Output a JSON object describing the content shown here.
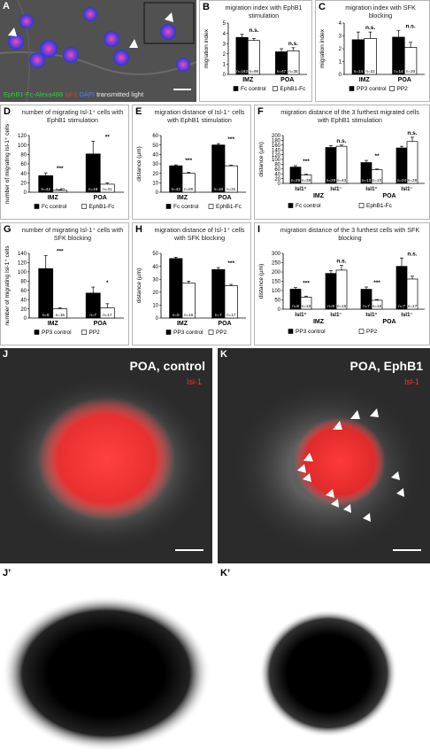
{
  "panel_labels": {
    "A": "A",
    "B": "B",
    "C": "C",
    "D": "D",
    "E": "E",
    "F": "F",
    "G": "G",
    "H": "H",
    "I": "I",
    "J": "J",
    "K": "K",
    "J2": "J’",
    "K2": "K’"
  },
  "microscopy": {
    "A_legend": [
      {
        "text": "EphB1-Fc-Alexa488",
        "color": "#2ecc40"
      },
      {
        "text": "Isl-1",
        "color": "#ff3030"
      },
      {
        "text": "DAPI",
        "color": "#4f7dff"
      },
      {
        "text": "transmitted light",
        "color": "#eeeeee"
      }
    ],
    "J_title": "POA, control",
    "J_legend": "Isl-1",
    "K_title": "POA, EphB1",
    "K_legend": "Isl-1"
  },
  "chart_data": [
    {
      "id": "B",
      "type": "bar",
      "title": "migration index with EphB1 stimulation",
      "ylabel": "migration index",
      "ylim": [
        0,
        5
      ],
      "yticks": [
        0,
        1,
        2,
        3,
        4,
        5
      ],
      "categories": [
        "IMZ",
        "POA"
      ],
      "series": [
        {
          "name": "Fc control",
          "values": [
            3.6,
            2.2
          ],
          "errors": [
            0.3,
            0.3
          ],
          "n": [
            "n=162",
            "n=47"
          ],
          "fill": "#000000"
        },
        {
          "name": "EphB1-Fc",
          "values": [
            3.3,
            2.3
          ],
          "errors": [
            0.2,
            0.3
          ],
          "n": [
            "n=96",
            "n=35"
          ],
          "fill": "#ffffff"
        }
      ],
      "significance": [
        "n.s.",
        "n.s."
      ]
    },
    {
      "id": "C",
      "type": "bar",
      "title": "migration index with SFK blocking",
      "ylabel": "migration index",
      "ylim": [
        0,
        4
      ],
      "yticks": [
        0,
        1,
        2,
        3,
        4
      ],
      "categories": [
        "IMZ",
        "POA"
      ],
      "series": [
        {
          "name": "PP3 control",
          "values": [
            2.7,
            2.9
          ],
          "errors": [
            0.6,
            0.5
          ],
          "n": [
            "n=14",
            "n=14"
          ],
          "fill": "#000000"
        },
        {
          "name": "PP2",
          "values": [
            2.8,
            2.1
          ],
          "errors": [
            0.5,
            0.4
          ],
          "n": [
            "n=22",
            "n=20"
          ],
          "fill": "#ffffff"
        }
      ],
      "significance": [
        "n.s.",
        "n.s."
      ]
    },
    {
      "id": "D",
      "type": "bar",
      "title": "number of migrating Isl-1⁺ cells with EphB1 stimulation",
      "ylabel": "number of migrating Isl-1⁺ cells",
      "ylim": [
        0,
        120
      ],
      "yticks": [
        0,
        20,
        40,
        60,
        80,
        100,
        120
      ],
      "categories": [
        "IMZ",
        "POA"
      ],
      "series": [
        {
          "name": "Fc control",
          "values": [
            35,
            81
          ],
          "errors": [
            6,
            27
          ],
          "n": [
            "n=42",
            "n=18"
          ],
          "fill": "#000000"
        },
        {
          "name": "EphB1-Fc",
          "values": [
            4,
            17
          ],
          "errors": [
            1,
            3
          ],
          "n": [
            "n=60",
            "n=31"
          ],
          "fill": "#ffffff"
        }
      ],
      "significance": [
        "***",
        "**"
      ]
    },
    {
      "id": "E",
      "type": "bar",
      "title": "migration distance of Isl-1⁺ cells with EphB1 stimulation",
      "ylabel": "distance (µm)",
      "ylim": [
        0,
        60
      ],
      "yticks": [
        0,
        10,
        20,
        30,
        40,
        50,
        60
      ],
      "categories": [
        "IMZ",
        "POA"
      ],
      "series": [
        {
          "name": "Fc control",
          "values": [
            28,
            50
          ],
          "errors": [
            1,
            1.5
          ],
          "n": [
            "n=42",
            "n=18"
          ],
          "fill": "#000000"
        },
        {
          "name": "EphB1-Fc",
          "values": [
            20,
            28
          ],
          "errors": [
            1,
            0.7
          ],
          "n": [
            "n=60",
            "n=31"
          ],
          "fill": "#ffffff"
        }
      ],
      "significance": [
        "***",
        "***"
      ]
    },
    {
      "id": "F",
      "type": "bar",
      "title": "migration distance of the 3 furthest migrated cells with EphB1 stimulation",
      "ylabel": "distance (µm)",
      "ylim": [
        0,
        200
      ],
      "yticks": [
        0,
        20,
        40,
        60,
        80,
        100,
        120,
        140,
        160,
        180,
        200
      ],
      "categories": [
        "Isl1⁺",
        "Isl1⁻",
        "Isl1⁺",
        "Isl1⁻"
      ],
      "groups": [
        "IMZ",
        "POA"
      ],
      "series": [
        {
          "name": "Fc control",
          "values": [
            68,
            150,
            87,
            148
          ],
          "errors": [
            6,
            8,
            9,
            7
          ],
          "n": [
            "n=29",
            "n=29",
            "n=13",
            "n=24"
          ],
          "fill": "#000000"
        },
        {
          "name": "EphB1-Fc",
          "values": [
            35,
            155,
            57,
            175
          ],
          "errors": [
            3,
            5,
            3,
            18
          ],
          "n": [
            "n=38",
            "n=40",
            "n=10",
            "n=28"
          ],
          "fill": "#ffffff"
        }
      ],
      "significance": [
        "***",
        "n.s.",
        "**",
        "n.s."
      ]
    },
    {
      "id": "G",
      "type": "bar",
      "title": "number of migrating Isl-1⁺ cells with SFK blocking",
      "ylabel": "number of migrating Isl-1⁺ cells",
      "ylim": [
        0,
        140
      ],
      "yticks": [
        0,
        20,
        40,
        60,
        80,
        100,
        120,
        140
      ],
      "categories": [
        "IMZ",
        "POA"
      ],
      "series": [
        {
          "name": "PP3 control",
          "values": [
            107,
            54
          ],
          "errors": [
            28,
            13
          ],
          "n": [
            "n=8",
            "n=7"
          ],
          "fill": "#000000"
        },
        {
          "name": "PP2",
          "values": [
            20,
            22
          ],
          "errors": [
            2,
            9
          ],
          "n": [
            "n=16",
            "n=17"
          ],
          "fill": "#ffffff"
        }
      ],
      "significance": [
        "***",
        "*"
      ]
    },
    {
      "id": "H",
      "type": "bar",
      "title": "migration distance of Isl-1⁺ cells with SFK blocking",
      "ylabel": "distance (µm)",
      "ylim": [
        0,
        50
      ],
      "yticks": [
        0,
        10,
        20,
        30,
        40,
        50
      ],
      "categories": [
        "IMZ",
        "POA"
      ],
      "series": [
        {
          "name": "PP3 control",
          "values": [
            46,
            37.5
          ],
          "errors": [
            1,
            1.5
          ],
          "n": [
            "n=8",
            "n=7"
          ],
          "fill": "#000000"
        },
        {
          "name": "PP2",
          "values": [
            27,
            25
          ],
          "errors": [
            1.5,
            1
          ],
          "n": [
            "n=16",
            "n=17"
          ],
          "fill": "#ffffff"
        }
      ],
      "significance": [
        "",
        "***"
      ]
    },
    {
      "id": "I",
      "type": "bar",
      "title": "migration distance of the 3 furthest cells with SFK blocking",
      "ylabel": "distance (µm)",
      "ylim": [
        0,
        300
      ],
      "yticks": [
        0,
        50,
        100,
        150,
        200,
        250,
        300
      ],
      "categories": [
        "Isl1⁺",
        "Isl1⁻",
        "Isl1⁺",
        "Isl1⁻"
      ],
      "groups": [
        "IMZ",
        "POA"
      ],
      "series": [
        {
          "name": "PP3 control",
          "values": [
            108,
            192,
            107,
            230
          ],
          "errors": [
            8,
            15,
            12,
            45
          ],
          "n": [
            "n=8",
            "n=8",
            "n=7",
            "n=7"
          ],
          "fill": "#000000"
        },
        {
          "name": "PP2",
          "values": [
            65,
            210,
            48,
            162
          ],
          "errors": [
            5,
            25,
            4,
            15
          ],
          "n": [
            "n=16",
            "n=16",
            "n=16",
            "n=17"
          ],
          "fill": "#ffffff"
        }
      ],
      "significance": [
        "***",
        "n.s.",
        "***",
        "n.s."
      ]
    }
  ]
}
